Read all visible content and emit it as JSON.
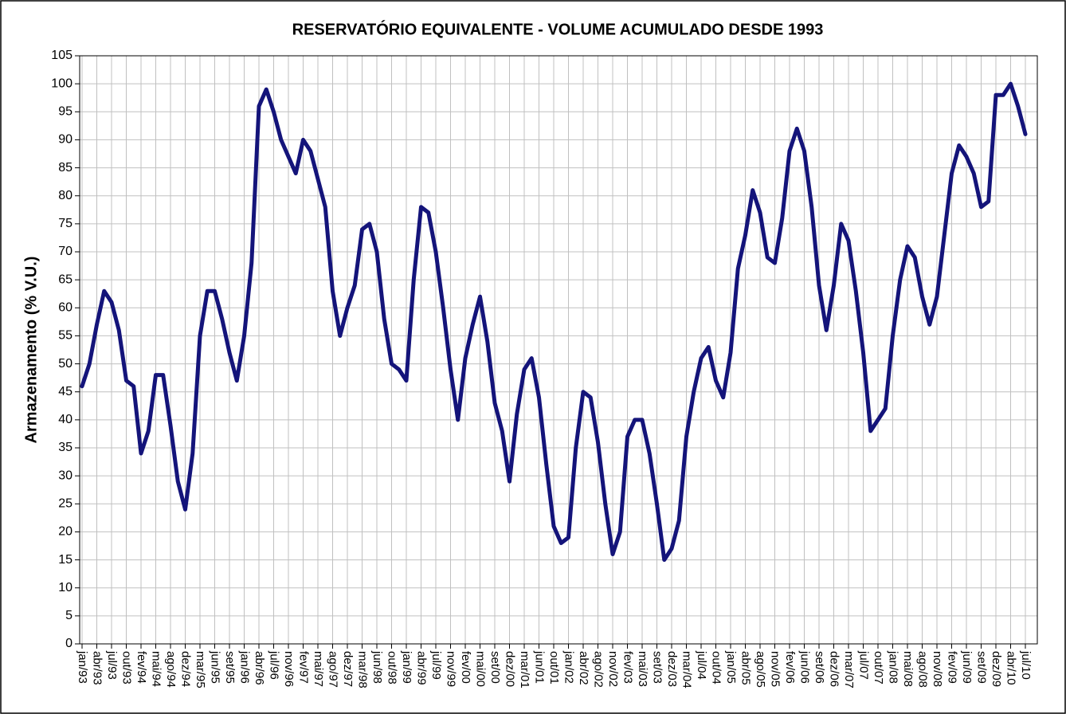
{
  "chart_data": {
    "type": "line",
    "title": "RESERVATÓRIO EQUIVALENTE - VOLUME ACUMULADO DESDE 1993",
    "y_label": "Armazenamento (%  V.U.)",
    "categories": [
      "jan/93",
      null,
      "abr/93",
      null,
      "jul/93",
      null,
      "out/93",
      null,
      "fev/94",
      null,
      "mai/94",
      null,
      "ago/94",
      null,
      "dez/94",
      null,
      "mar/95",
      null,
      "jun/95",
      null,
      "set/95",
      null,
      "jan/96",
      null,
      "abr/96",
      null,
      "jul/96",
      null,
      "nov/96",
      null,
      "fev/97",
      null,
      "mai/97",
      null,
      "ago/97",
      null,
      "dez/97",
      null,
      "mar/98",
      null,
      "jun/98",
      null,
      "out/98",
      null,
      "jan/99",
      null,
      "abr/99",
      null,
      "jul/99",
      null,
      "nov/99",
      null,
      "fev/00",
      null,
      "mai/00",
      null,
      "set/00",
      null,
      "dez/00",
      null,
      "mar/01",
      null,
      "jun/01",
      null,
      "out/01",
      null,
      "jan/02",
      null,
      "abr/02",
      null,
      "ago/02",
      null,
      "nov/02",
      null,
      "fev/03",
      null,
      "mai/03",
      null,
      "set/03",
      null,
      "dez/03",
      null,
      "mar/04",
      null,
      "jul/04",
      null,
      "out/04",
      null,
      "jan/05",
      null,
      "abr/05",
      null,
      "ago/05",
      null,
      "nov/05",
      null,
      "fev/06",
      null,
      "jun/06",
      null,
      "set/06",
      null,
      "dez/06",
      null,
      "mar/07",
      null,
      "jul/07",
      null,
      "out/07",
      null,
      "jan/08",
      null,
      "mai/08",
      null,
      "ago/08",
      null,
      "nov/08",
      null,
      "fev/09",
      null,
      "jun/09",
      null,
      "set/09",
      null,
      "dez/09",
      null,
      "abr/10",
      null,
      "jul/10"
    ],
    "series": [
      {
        "color": "#14147a",
        "values": [
          46,
          50,
          57,
          63,
          61,
          56,
          47,
          46,
          34,
          38,
          48,
          48,
          39,
          29,
          24,
          34,
          55,
          63,
          63,
          58,
          52,
          47,
          55,
          68,
          96,
          99,
          95,
          90,
          87,
          84,
          90,
          88,
          83,
          78,
          63,
          55,
          60,
          64,
          74,
          75,
          70,
          58,
          50,
          49,
          47,
          65,
          78,
          77,
          70,
          60,
          49,
          40,
          51,
          57,
          62,
          54,
          43,
          38,
          29,
          41,
          49,
          51,
          44,
          32,
          21,
          18,
          19,
          35,
          45,
          44,
          36,
          25,
          16,
          20,
          37,
          40,
          40,
          34,
          25,
          15,
          17,
          22,
          37,
          45,
          51,
          53,
          47,
          44,
          52,
          67,
          73,
          81,
          77,
          69,
          68,
          76,
          88,
          92,
          88,
          78,
          64,
          56,
          64,
          75,
          72,
          63,
          52,
          38,
          40,
          42,
          55,
          65,
          71,
          69,
          62,
          57,
          62,
          73,
          84,
          89,
          87,
          84,
          78,
          79,
          98,
          98,
          100,
          96,
          91
        ]
      }
    ],
    "ylim": [
      0,
      105
    ],
    "yticks": [
      0,
      5,
      10,
      15,
      20,
      25,
      30,
      35,
      40,
      45,
      50,
      55,
      60,
      65,
      70,
      75,
      80,
      85,
      90,
      95,
      100,
      105
    ],
    "grid": true
  }
}
